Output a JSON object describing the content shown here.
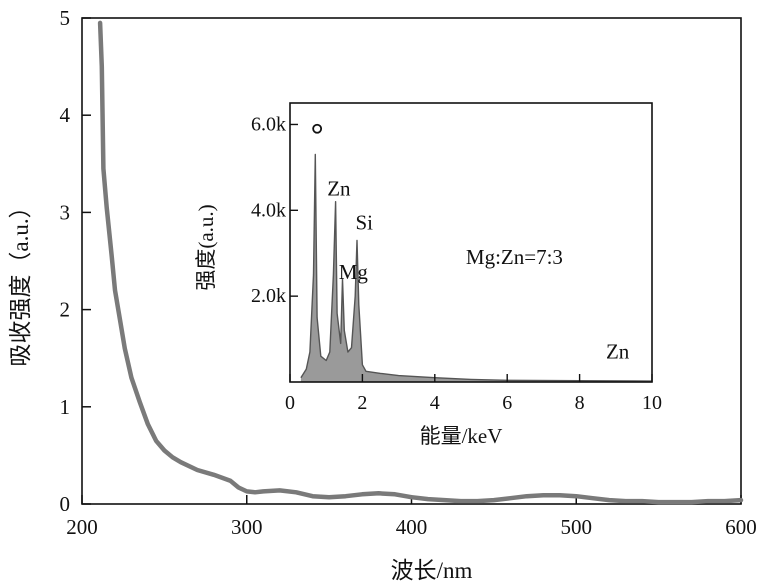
{
  "chart_data": [
    {
      "type": "line",
      "title": "",
      "xlabel": "波长/nm",
      "ylabel": "吸收强度（a.u.）",
      "xlim": [
        200,
        600
      ],
      "ylim": [
        0,
        5
      ],
      "xticks": [
        200,
        300,
        400,
        500,
        600
      ],
      "yticks": [
        0,
        1,
        2,
        3,
        4,
        5
      ],
      "line_color": "#7a7a7a",
      "series": [
        {
          "x": [
            211,
            212,
            213,
            215,
            218,
            220,
            223,
            226,
            230,
            235,
            240,
            245,
            250,
            255,
            260,
            270,
            280,
            290,
            295,
            300,
            305,
            310,
            320,
            330,
            340,
            350,
            360,
            370,
            380,
            390,
            400,
            410,
            420,
            430,
            440,
            450,
            460,
            470,
            480,
            490,
            500,
            510,
            520,
            530,
            540,
            550,
            560,
            570,
            580,
            590,
            600
          ],
          "y": [
            4.95,
            4.5,
            3.45,
            3.05,
            2.55,
            2.2,
            1.9,
            1.6,
            1.3,
            1.05,
            0.82,
            0.65,
            0.55,
            0.48,
            0.43,
            0.35,
            0.3,
            0.24,
            0.17,
            0.13,
            0.12,
            0.13,
            0.14,
            0.12,
            0.08,
            0.07,
            0.08,
            0.1,
            0.11,
            0.1,
            0.07,
            0.05,
            0.04,
            0.03,
            0.03,
            0.04,
            0.06,
            0.08,
            0.09,
            0.09,
            0.08,
            0.06,
            0.04,
            0.03,
            0.03,
            0.02,
            0.02,
            0.02,
            0.03,
            0.03,
            0.04
          ]
        }
      ]
    },
    {
      "type": "line",
      "title": "",
      "xlabel": "能量/keV",
      "ylabel": "强度(a.u.)",
      "xlim": [
        0,
        10
      ],
      "ylim": [
        0,
        6500
      ],
      "xticks": [
        0,
        2,
        4,
        6,
        8,
        10
      ],
      "xtick_labels": [
        "0",
        "2",
        "4",
        "6",
        "8",
        "10"
      ],
      "yticks": [
        2000,
        4000,
        6000
      ],
      "ytick_labels": [
        "2.0k",
        "4.0k",
        "6.0k"
      ],
      "line_color": "#555555",
      "series": [
        {
          "x": [
            0.3,
            0.45,
            0.55,
            0.65,
            0.7,
            0.75,
            0.85,
            1.0,
            1.1,
            1.2,
            1.26,
            1.3,
            1.4,
            1.45,
            1.5,
            1.6,
            1.7,
            1.8,
            1.85,
            1.9,
            2.0,
            2.1,
            2.5,
            3.0,
            4.0,
            5.0,
            6.0,
            8.0,
            10.0
          ],
          "y": [
            100,
            300,
            700,
            2500,
            5300,
            1500,
            600,
            500,
            700,
            2500,
            4200,
            1600,
            900,
            2400,
            1200,
            700,
            800,
            2000,
            3300,
            1800,
            400,
            250,
            200,
            150,
            100,
            60,
            40,
            30,
            20
          ]
        }
      ],
      "annotations": [
        {
          "text": "Zn",
          "x": 1.35,
          "y": 4350
        },
        {
          "text": "Si",
          "x": 2.05,
          "y": 3550
        },
        {
          "text": "Mg",
          "x": 1.75,
          "y": 2400
        },
        {
          "text": "Mg:Zn=7:3",
          "x": 6.2,
          "y": 2750
        },
        {
          "text": "Zn",
          "x": 9.05,
          "y": 550
        }
      ],
      "marker": {
        "shape": "circle",
        "x": 0.75,
        "y": 5900
      }
    }
  ]
}
